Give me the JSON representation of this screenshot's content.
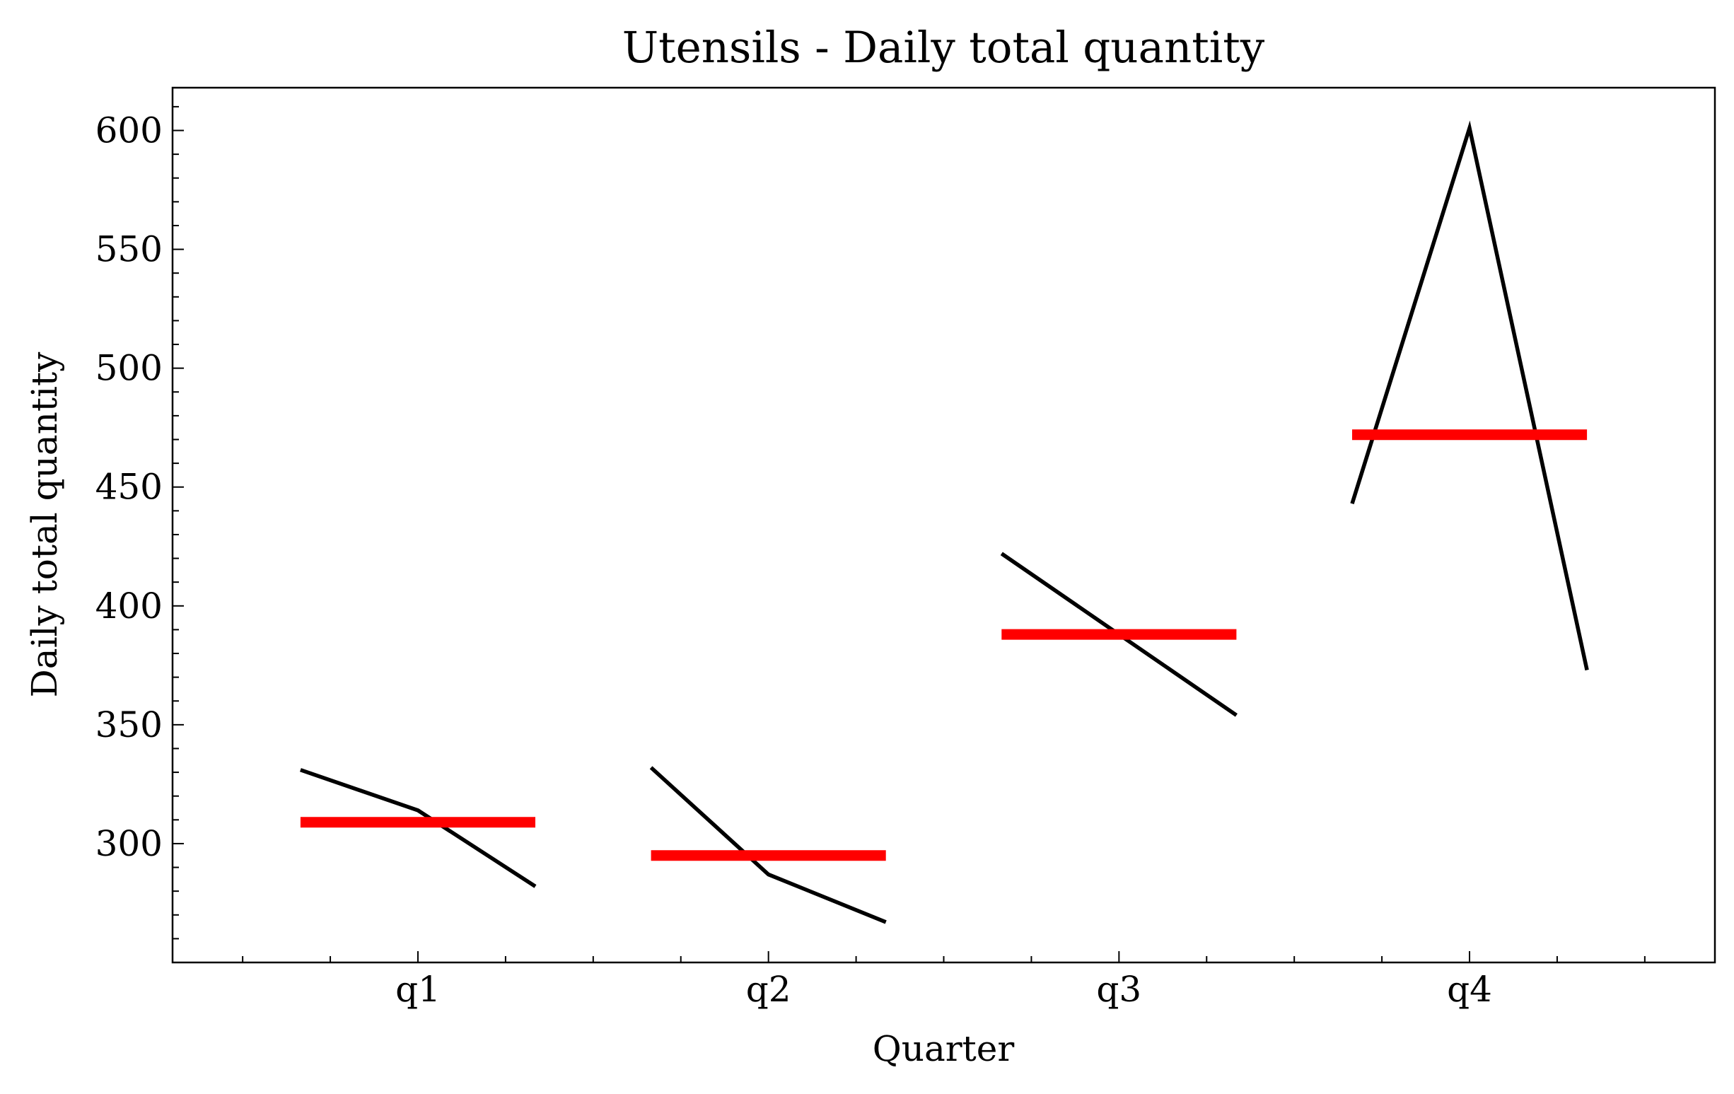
{
  "chart_data": {
    "type": "line",
    "title": "Utensils - Daily total quantity",
    "xlabel": "Quarter",
    "ylabel": "Daily total quantity",
    "categories": [
      "q1",
      "q2",
      "q3",
      "q4"
    ],
    "ylim": [
      250,
      618
    ],
    "yticks": [
      300,
      350,
      400,
      450,
      500,
      550,
      600
    ],
    "series": [
      {
        "kind": "segments",
        "color": "#000000",
        "groups": [
          {
            "category": "q1",
            "values": [
              331,
              314,
              282
            ]
          },
          {
            "category": "q2",
            "values": [
              332,
              287,
              267
            ]
          },
          {
            "category": "q3",
            "values": [
              422,
              388,
              354
            ]
          },
          {
            "category": "q4",
            "values": [
              443,
              601,
              373
            ]
          }
        ]
      },
      {
        "kind": "mean",
        "color": "#ff0000",
        "values": [
          309,
          295,
          388,
          472
        ]
      }
    ],
    "grid": false
  }
}
